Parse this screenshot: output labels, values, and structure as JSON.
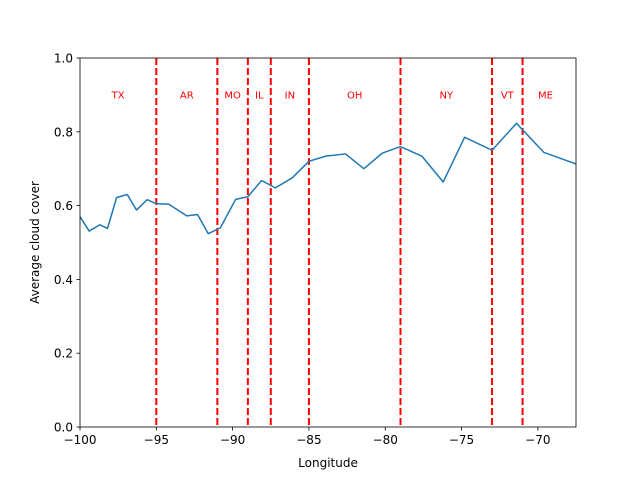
{
  "chart_data": {
    "type": "line",
    "xlabel": "Longitude",
    "ylabel": "Average cloud cover",
    "xlim": [
      -100,
      -67.5
    ],
    "ylim": [
      0.0,
      1.0
    ],
    "xticks": [
      -100,
      -95,
      -90,
      -85,
      -80,
      -75,
      -70
    ],
    "xtick_labels": [
      "−100",
      "−95",
      "−90",
      "−85",
      "−80",
      "−75",
      "−70"
    ],
    "yticks": [
      0.0,
      0.2,
      0.4,
      0.6,
      0.8,
      1.0
    ],
    "ytick_labels": [
      "0.0",
      "0.2",
      "0.4",
      "0.6",
      "0.8",
      "1.0"
    ],
    "grid": false,
    "series": [
      {
        "color": "#1f77b4",
        "x": [
          -100.0,
          -99.4,
          -98.7,
          -98.2,
          -97.6,
          -96.9,
          -96.3,
          -95.6,
          -95.0,
          -94.2,
          -93.0,
          -92.3,
          -91.6,
          -90.8,
          -89.8,
          -89.0,
          -88.1,
          -87.2,
          -86.1,
          -85.0,
          -83.9,
          -82.6,
          -81.4,
          -80.2,
          -79.0,
          -77.6,
          -76.2,
          -74.8,
          -73.0,
          -71.4,
          -69.6,
          -67.5
        ],
        "y": [
          0.57,
          0.531,
          0.548,
          0.538,
          0.622,
          0.63,
          0.588,
          0.616,
          0.605,
          0.604,
          0.572,
          0.576,
          0.524,
          0.54,
          0.617,
          0.624,
          0.668,
          0.648,
          0.675,
          0.72,
          0.734,
          0.74,
          0.7,
          0.742,
          0.76,
          0.734,
          0.664,
          0.785,
          0.75,
          0.823,
          0.744,
          0.713
        ]
      }
    ],
    "vlines": {
      "color": "#ff0000",
      "style": "dashed",
      "x": [
        -95.0,
        -91.0,
        -89.0,
        -87.5,
        -85.0,
        -79.0,
        -73.0,
        -71.0
      ]
    },
    "region_labels": {
      "color": "#ff0000",
      "y": 0.9,
      "items": [
        {
          "label": "TX",
          "x": -97.5
        },
        {
          "label": "AR",
          "x": -93.0
        },
        {
          "label": "MO",
          "x": -90.0
        },
        {
          "label": "IL",
          "x": -88.25
        },
        {
          "label": "IN",
          "x": -86.25
        },
        {
          "label": "OH",
          "x": -82.0
        },
        {
          "label": "NY",
          "x": -76.0
        },
        {
          "label": "VT",
          "x": -72.0
        },
        {
          "label": "ME",
          "x": -69.5
        }
      ]
    }
  }
}
